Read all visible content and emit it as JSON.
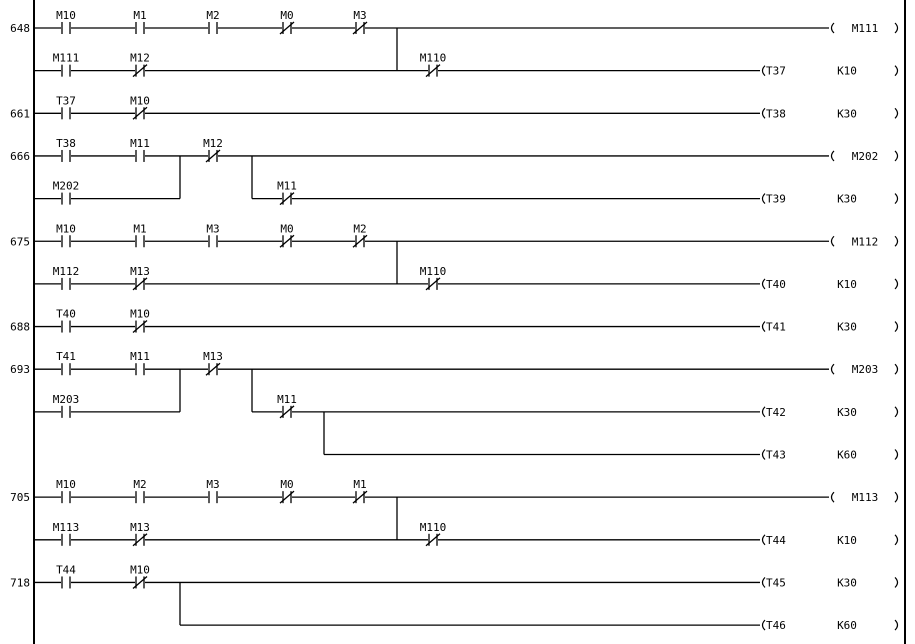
{
  "colors": {
    "line": "#000000",
    "background": "#ffffff"
  },
  "rungs": [
    {
      "step": "648",
      "rows": [
        {
          "contacts": [
            {
              "label": "M10",
              "type": "no",
              "col": 0
            },
            {
              "label": "M1",
              "type": "no",
              "col": 1
            },
            {
              "label": "M2",
              "type": "no",
              "col": 2
            },
            {
              "label": "M0",
              "type": "nc",
              "col": 3
            },
            {
              "label": "M3",
              "type": "nc",
              "col": 4
            }
          ],
          "coil": {
            "kind": "output",
            "label": "M111"
          }
        },
        {
          "contacts": [
            {
              "label": "M111",
              "type": "no",
              "col": 0
            },
            {
              "label": "M12",
              "type": "nc",
              "col": 1
            },
            {
              "label": "M110",
              "type": "nc",
              "col": 5
            }
          ],
          "coil": {
            "kind": "timer",
            "label": "T37",
            "preset": "K10"
          }
        }
      ]
    },
    {
      "step": "661",
      "rows": [
        {
          "contacts": [
            {
              "label": "T37",
              "type": "no",
              "col": 0
            },
            {
              "label": "M10",
              "type": "nc",
              "col": 1
            }
          ],
          "coil": {
            "kind": "timer",
            "label": "T38",
            "preset": "K30"
          }
        }
      ]
    },
    {
      "step": "666",
      "rows": [
        {
          "contacts": [
            {
              "label": "T38",
              "type": "no",
              "col": 0
            },
            {
              "label": "M11",
              "type": "no",
              "col": 1
            },
            {
              "label": "M12",
              "type": "nc",
              "col": 2
            }
          ],
          "coil": {
            "kind": "output",
            "label": "M202"
          }
        },
        {
          "contacts": [
            {
              "label": "M202",
              "type": "no",
              "col": 0
            },
            {
              "label": "M11",
              "type": "nc",
              "col": 3
            }
          ],
          "coil": {
            "kind": "timer",
            "label": "T39",
            "preset": "K30"
          }
        }
      ]
    },
    {
      "step": "675",
      "rows": [
        {
          "contacts": [
            {
              "label": "M10",
              "type": "no",
              "col": 0
            },
            {
              "label": "M1",
              "type": "no",
              "col": 1
            },
            {
              "label": "M3",
              "type": "no",
              "col": 2
            },
            {
              "label": "M0",
              "type": "nc",
              "col": 3
            },
            {
              "label": "M2",
              "type": "nc",
              "col": 4
            }
          ],
          "coil": {
            "kind": "output",
            "label": "M112"
          }
        },
        {
          "contacts": [
            {
              "label": "M112",
              "type": "no",
              "col": 0
            },
            {
              "label": "M13",
              "type": "nc",
              "col": 1
            },
            {
              "label": "M110",
              "type": "nc",
              "col": 5
            }
          ],
          "coil": {
            "kind": "timer",
            "label": "T40",
            "preset": "K10"
          }
        }
      ]
    },
    {
      "step": "688",
      "rows": [
        {
          "contacts": [
            {
              "label": "T40",
              "type": "no",
              "col": 0
            },
            {
              "label": "M10",
              "type": "nc",
              "col": 1
            }
          ],
          "coil": {
            "kind": "timer",
            "label": "T41",
            "preset": "K30"
          }
        }
      ]
    },
    {
      "step": "693",
      "rows": [
        {
          "contacts": [
            {
              "label": "T41",
              "type": "no",
              "col": 0
            },
            {
              "label": "M11",
              "type": "no",
              "col": 1
            },
            {
              "label": "M13",
              "type": "nc",
              "col": 2
            }
          ],
          "coil": {
            "kind": "output",
            "label": "M203"
          }
        },
        {
          "contacts": [
            {
              "label": "M203",
              "type": "no",
              "col": 0
            },
            {
              "label": "M11",
              "type": "nc",
              "col": 3
            }
          ],
          "coil": {
            "kind": "timer",
            "label": "T42",
            "preset": "K30"
          }
        },
        {
          "contacts": [],
          "coil": {
            "kind": "timer",
            "label": "T43",
            "preset": "K60"
          }
        }
      ]
    },
    {
      "step": "705",
      "rows": [
        {
          "contacts": [
            {
              "label": "M10",
              "type": "no",
              "col": 0
            },
            {
              "label": "M2",
              "type": "no",
              "col": 1
            },
            {
              "label": "M3",
              "type": "no",
              "col": 2
            },
            {
              "label": "M0",
              "type": "nc",
              "col": 3
            },
            {
              "label": "M1",
              "type": "nc",
              "col": 4
            }
          ],
          "coil": {
            "kind": "output",
            "label": "M113"
          }
        },
        {
          "contacts": [
            {
              "label": "M113",
              "type": "no",
              "col": 0
            },
            {
              "label": "M13",
              "type": "nc",
              "col": 1
            },
            {
              "label": "M110",
              "type": "nc",
              "col": 5
            }
          ],
          "coil": {
            "kind": "timer",
            "label": "T44",
            "preset": "K10"
          }
        }
      ]
    },
    {
      "step": "718",
      "rows": [
        {
          "contacts": [
            {
              "label": "T44",
              "type": "no",
              "col": 0
            },
            {
              "label": "M10",
              "type": "nc",
              "col": 1
            }
          ],
          "coil": {
            "kind": "timer",
            "label": "T45",
            "preset": "K30"
          }
        },
        {
          "contacts": [],
          "coil": {
            "kind": "timer",
            "label": "T46",
            "preset": "K60"
          }
        }
      ]
    }
  ]
}
